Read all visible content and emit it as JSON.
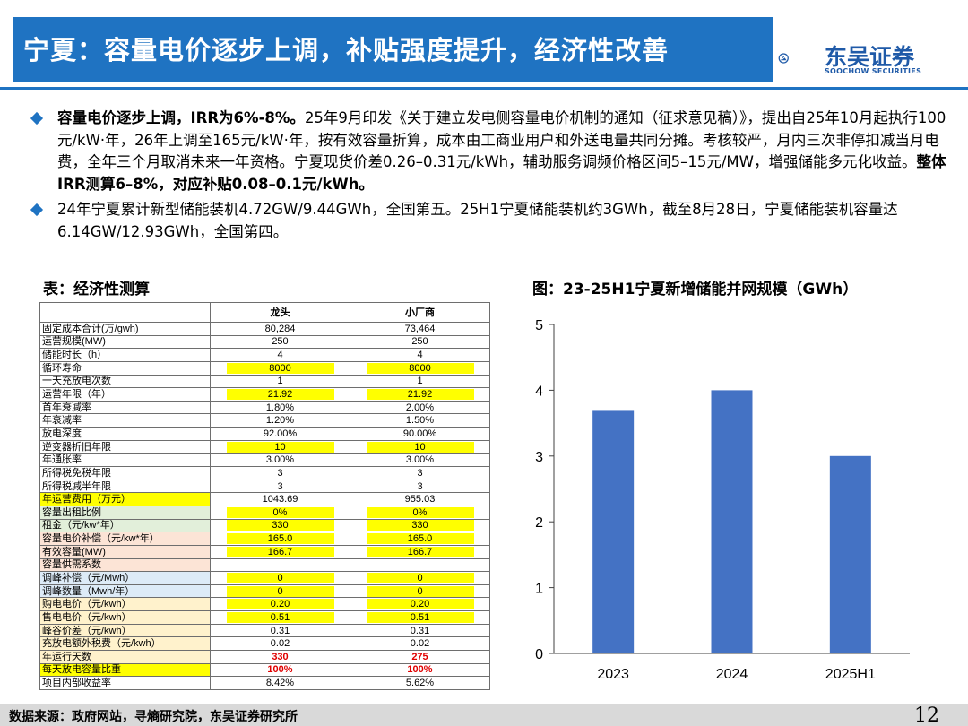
{
  "header": {
    "title": "宁夏：容量电价逐步上调，补贴强度提升，经济性改善",
    "logo_name": "东吴证券",
    "logo_sub": "SOOCHOW SECURITIES"
  },
  "bullets": [
    {
      "lead": "容量电价逐步上调，IRR为6%-8%。",
      "text": "25年9月印发《关于建立发电侧容量电价机制的通知（征求意见稿）》，提出自25年10月起执行100元/kW·年，26年上调至165元/kW·年，按有效容量折算，成本由工商业用户和外送电量共同分摊。考核较严，月内三次非停扣减当月电费，全年三个月取消未来一年资格。宁夏现货价差0.26–0.31元/kWh，辅助服务调频价格区间5–15元/MW，增强储能多元化收益。",
      "tail": "整体IRR测算6–8%，对应补贴0.08–0.1元/kWh。"
    },
    {
      "lead": "",
      "text": "24年宁夏累计新型储能装机4.72GW/9.44GWh，全国第五。25H1宁夏储能装机约3GWh，截至8月28日，宁夏储能装机容量达6.14GW/12.93GWh，全国第四。",
      "tail": ""
    }
  ],
  "table": {
    "caption": "表：经济性测算",
    "columns": [
      "",
      "龙头",
      "小厂商"
    ],
    "rows": [
      {
        "label": "固定成本合计(万/gwh)",
        "a": "80,284",
        "b": "73,464",
        "bg": "",
        "hl": false,
        "red": false
      },
      {
        "label": "运营规模(MW)",
        "a": "250",
        "b": "250",
        "bg": "",
        "hl": false,
        "red": false
      },
      {
        "label": "储能时长（h）",
        "a": "4",
        "b": "4",
        "bg": "",
        "hl": false,
        "red": false
      },
      {
        "label": "循环寿命",
        "a": "8000",
        "b": "8000",
        "bg": "",
        "hl": true,
        "red": false
      },
      {
        "label": "一天充放电次数",
        "a": "1",
        "b": "1",
        "bg": "",
        "hl": false,
        "red": false
      },
      {
        "label": "运营年限（年）",
        "a": "21.92",
        "b": "21.92",
        "bg": "",
        "hl": true,
        "red": false
      },
      {
        "label": "首年衰减率",
        "a": "1.80%",
        "b": "2.00%",
        "bg": "",
        "hl": false,
        "red": false
      },
      {
        "label": "年衰减率",
        "a": "1.20%",
        "b": "1.50%",
        "bg": "",
        "hl": false,
        "red": false
      },
      {
        "label": "放电深度",
        "a": "92.00%",
        "b": "90.00%",
        "bg": "",
        "hl": false,
        "red": false
      },
      {
        "label": "逆变器折旧年限",
        "a": "10",
        "b": "10",
        "bg": "",
        "hl": true,
        "red": false
      },
      {
        "label": "年通胀率",
        "a": "3.00%",
        "b": "3.00%",
        "bg": "",
        "hl": false,
        "red": false
      },
      {
        "label": "所得税免税年限",
        "a": "3",
        "b": "3",
        "bg": "",
        "hl": false,
        "red": false
      },
      {
        "label": "所得税减半年限",
        "a": "3",
        "b": "3",
        "bg": "",
        "hl": false,
        "red": false
      },
      {
        "label": "年运营费用（万元）",
        "a": "1043.69",
        "b": "955.03",
        "bg": "bg-yellow",
        "hl": false,
        "red": false
      },
      {
        "label": "容量出租比例",
        "a": "0%",
        "b": "0%",
        "bg": "bg-green",
        "hl": true,
        "red": false
      },
      {
        "label": "租金（元/kw*年）",
        "a": "330",
        "b": "330",
        "bg": "bg-green",
        "hl": true,
        "red": false
      },
      {
        "label": "容量电价补偿（元/kw*年）",
        "a": "165.0",
        "b": "165.0",
        "bg": "bg-pink",
        "hl": true,
        "red": false
      },
      {
        "label": "有效容量(MW)",
        "a": "166.7",
        "b": "166.7",
        "bg": "bg-pink",
        "hl": true,
        "red": false
      },
      {
        "label": "容量供需系数",
        "a": "",
        "b": "",
        "bg": "bg-pink",
        "hl": true,
        "red": false
      },
      {
        "label": "调峰补偿（元/Mwh）",
        "a": "0",
        "b": "0",
        "bg": "bg-blue",
        "hl": true,
        "red": false
      },
      {
        "label": "调峰数量（Mwh/年）",
        "a": "0",
        "b": "0",
        "bg": "bg-blue",
        "hl": true,
        "red": false
      },
      {
        "label": "购电电价（元/kwh）",
        "a": "0.20",
        "b": "0.20",
        "bg": "bg-peach",
        "hl": true,
        "red": false
      },
      {
        "label": "售电电价（元/kwh）",
        "a": "0.51",
        "b": "0.51",
        "bg": "bg-peach",
        "hl": true,
        "red": false
      },
      {
        "label": "峰谷价差（元/kwh）",
        "a": "0.31",
        "b": "0.31",
        "bg": "bg-peach",
        "hl": false,
        "red": false
      },
      {
        "label": "充放电额外税费（元/kwh）",
        "a": "0.02",
        "b": "0.02",
        "bg": "bg-peach",
        "hl": false,
        "red": false
      },
      {
        "label": "年运行天数",
        "a": "330",
        "b": "275",
        "bg": "bg-peach",
        "hl": false,
        "red": true
      },
      {
        "label": "每天放电容量比重",
        "a": "100%",
        "b": "100%",
        "bg": "bg-yellow",
        "hl": false,
        "red": true
      },
      {
        "label": "项目内部收益率",
        "a": "8.42%",
        "b": "5.62%",
        "bg": "",
        "hl": false,
        "red": false
      }
    ]
  },
  "chart_caption": "图：23-25H1宁夏新增储能并网规模（GWh）",
  "chart_data": {
    "type": "bar",
    "title": "图：23-25H1宁夏新增储能并网规模（GWh）",
    "categories": [
      "2023",
      "2024",
      "2025H1"
    ],
    "values": [
      3.7,
      4.0,
      3.0
    ],
    "ylim": [
      0,
      5
    ],
    "yticks": [
      0,
      1,
      2,
      3,
      4,
      5
    ],
    "bar_color": "#4472c4",
    "grid": false,
    "xlabel": "",
    "ylabel": ""
  },
  "footer": {
    "source": "数据来源：政府网站，寻熵研究院，东吴证券研究所",
    "page": "12"
  },
  "colors": {
    "brand_blue": "#1f73c2",
    "highlight": "#ffff00",
    "alert_red": "#e00000"
  }
}
